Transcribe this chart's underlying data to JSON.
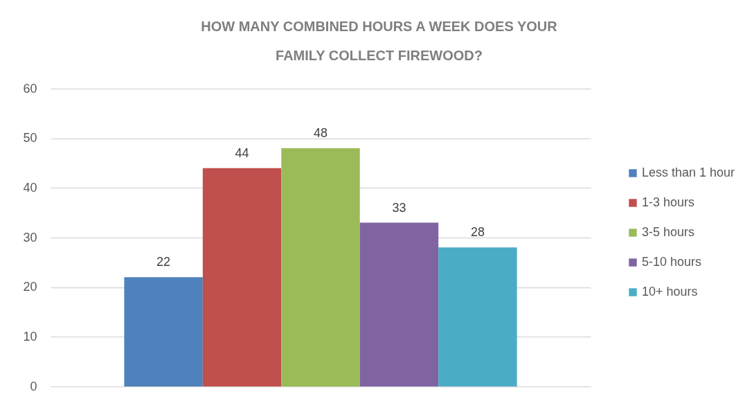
{
  "chart_data": {
    "type": "bar",
    "title": "HOW MANY COMBINED HOURS A WEEK DOES YOUR FAMILY COLLECT FIREWOOD?",
    "categories": [
      null
    ],
    "series": [
      {
        "name": "Less than 1 hour",
        "color": "#4f81bd",
        "values": [
          22
        ]
      },
      {
        "name": "1-3 hours",
        "color": "#c0504d",
        "values": [
          44
        ]
      },
      {
        "name": "3-5 hours",
        "color": "#9bbb59",
        "values": [
          48
        ]
      },
      {
        "name": "5-10 hours",
        "color": "#8064a2",
        "values": [
          33
        ]
      },
      {
        "name": "10+ hours",
        "color": "#4bacc6",
        "values": [
          28
        ]
      }
    ],
    "ylim": [
      0,
      60
    ],
    "yticks": [
      0,
      10,
      20,
      30,
      40,
      50,
      60
    ],
    "grid": "y",
    "legend": "right",
    "tick_labels": "y",
    "data_labels": true
  }
}
